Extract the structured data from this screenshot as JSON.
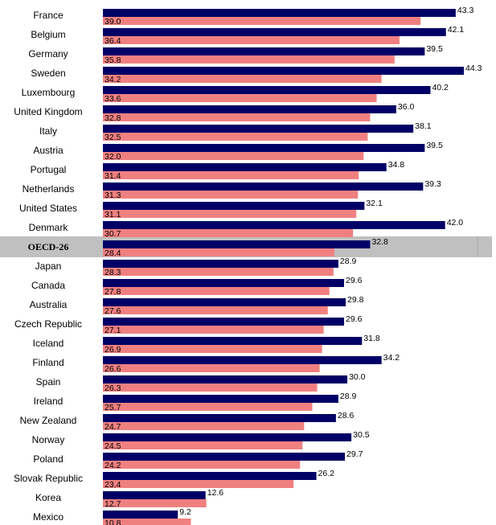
{
  "chart_data": {
    "type": "bar",
    "orientation": "horizontal",
    "categories": [
      "France",
      "Belgium",
      "Germany",
      "Sweden",
      "Luxembourg",
      "United Kingdom",
      "Italy",
      "Austria",
      "Portugal",
      "Netherlands",
      "United States",
      "Denmark",
      "OECD-26",
      "Japan",
      "Canada",
      "Australia",
      "Czech Republic",
      "Iceland",
      "Finland",
      "Spain",
      "Ireland",
      "New Zealand",
      "Norway",
      "Poland",
      "Slovak Republic",
      "Korea",
      "Mexico"
    ],
    "highlight_category": "OECD-26",
    "series": [
      {
        "values": [
          43.3,
          42.1,
          39.5,
          44.3,
          40.2,
          36.0,
          38.1,
          39.5,
          34.8,
          39.3,
          32.1,
          42.0,
          32.8,
          28.9,
          29.6,
          29.8,
          29.6,
          31.8,
          34.2,
          30.0,
          28.9,
          28.6,
          30.5,
          29.7,
          26.2,
          12.6,
          9.2
        ],
        "color": "#000066"
      },
      {
        "values": [
          39.0,
          36.4,
          35.8,
          34.2,
          33.6,
          32.8,
          32.5,
          32.0,
          31.4,
          31.3,
          31.1,
          30.7,
          28.4,
          28.3,
          27.8,
          27.6,
          27.1,
          26.9,
          26.6,
          26.3,
          25.7,
          24.7,
          24.5,
          24.2,
          23.4,
          12.7,
          10.8
        ],
        "color": "#f08080"
      }
    ],
    "xlim": [
      0,
      44.3
    ],
    "title": "",
    "xlabel": "",
    "ylabel": "",
    "grid": false,
    "legend": "none",
    "highlight_band_color": "#c0c0c0"
  }
}
